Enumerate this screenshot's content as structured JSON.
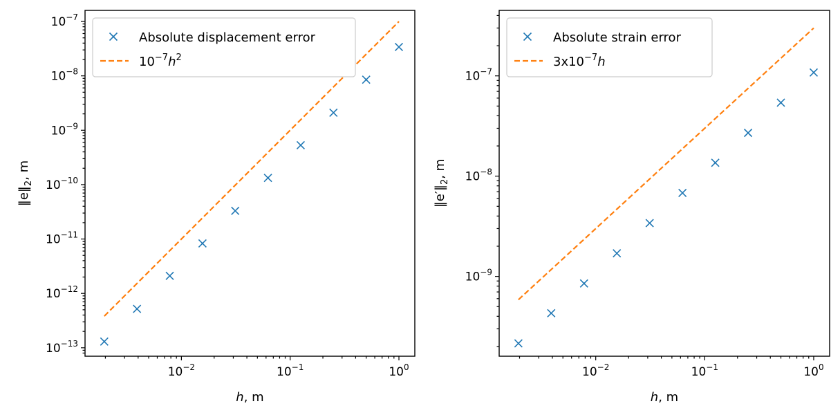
{
  "chart_data": [
    {
      "type": "scatter",
      "xscale": "log",
      "yscale": "log",
      "xlabel_var": "h",
      "xlabel_unit": ", m",
      "ylabel_prefix": "‖e‖",
      "ylabel_sub": "2",
      "ylabel_unit": ", m",
      "xlim": [
        0.0013,
        1.4
      ],
      "ylim": [
        7e-14,
        1.6e-07
      ],
      "legend_position": "upper-left",
      "colors": {
        "series": "#1f77b4",
        "reference": "#ff7f0e"
      },
      "x_ticks": [
        {
          "value": 0.01,
          "base": "10",
          "exp": "−2"
        },
        {
          "value": 0.1,
          "base": "10",
          "exp": "−1"
        },
        {
          "value": 1,
          "base": "10",
          "exp": "0"
        }
      ],
      "y_ticks": [
        {
          "value": 1e-13,
          "base": "10",
          "exp": "−13"
        },
        {
          "value": 1e-12,
          "base": "10",
          "exp": "−12"
        },
        {
          "value": 1e-11,
          "base": "10",
          "exp": "−11"
        },
        {
          "value": 1e-10,
          "base": "10",
          "exp": "−10"
        },
        {
          "value": 1e-09,
          "base": "10",
          "exp": "−9"
        },
        {
          "value": 1e-08,
          "base": "10",
          "exp": "−8"
        },
        {
          "value": 1e-07,
          "base": "10",
          "exp": "−7"
        }
      ],
      "series": [
        {
          "name": "Absolute displacement error",
          "marker": "x",
          "x": [
            0.001953125,
            0.00390625,
            0.0078125,
            0.015625,
            0.03125,
            0.0625,
            0.125,
            0.25,
            0.5,
            1
          ],
          "y": [
            1.3e-13,
            5.2e-13,
            2.1e-12,
            8.3e-12,
            3.3e-11,
            1.33e-10,
            5.3e-10,
            2.1e-09,
            8.5e-09,
            3.4e-08
          ]
        }
      ],
      "reference_line": {
        "label_parts": {
          "base": "10",
          "exp": "−7",
          "var": "h",
          "var_exp": "2"
        },
        "coefficient": 1e-07,
        "power": 2,
        "x_start": 0.001953125,
        "x_end": 1
      }
    },
    {
      "type": "scatter",
      "xscale": "log",
      "yscale": "log",
      "xlabel_var": "h",
      "xlabel_unit": ", m",
      "ylabel_prefix": "‖e′‖",
      "ylabel_sub": "2",
      "ylabel_unit": ", m",
      "xlim": [
        0.0013,
        1.4
      ],
      "ylim": [
        1.6e-10,
        4.5e-07
      ],
      "legend_position": "upper-left",
      "colors": {
        "series": "#1f77b4",
        "reference": "#ff7f0e"
      },
      "x_ticks": [
        {
          "value": 0.01,
          "base": "10",
          "exp": "−2"
        },
        {
          "value": 0.1,
          "base": "10",
          "exp": "−1"
        },
        {
          "value": 1,
          "base": "10",
          "exp": "0"
        }
      ],
      "y_ticks": [
        {
          "value": 1e-09,
          "base": "10",
          "exp": "−9"
        },
        {
          "value": 1e-08,
          "base": "10",
          "exp": "−8"
        },
        {
          "value": 1e-07,
          "base": "10",
          "exp": "−7"
        }
      ],
      "series": [
        {
          "name": "Absolute strain error",
          "marker": "x",
          "x": [
            0.001953125,
            0.00390625,
            0.0078125,
            0.015625,
            0.03125,
            0.0625,
            0.125,
            0.25,
            0.5,
            1
          ],
          "y": [
            2.15e-10,
            4.3e-10,
            8.5e-10,
            1.7e-09,
            3.4e-09,
            6.8e-09,
            1.36e-08,
            2.7e-08,
            5.4e-08,
            1.08e-07
          ]
        }
      ],
      "reference_line": {
        "label_parts": {
          "prefix": "3x",
          "base": "10",
          "exp": "−7",
          "var": "h",
          "var_exp": ""
        },
        "coefficient": 3e-07,
        "power": 1,
        "x_start": 0.001953125,
        "x_end": 1
      }
    }
  ]
}
